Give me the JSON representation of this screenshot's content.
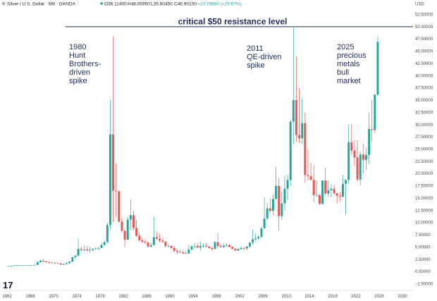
{
  "chart_data": {
    "type": "candlestick",
    "header": {
      "symbol": "Silver / U.S. Dollar · 6M · OANDA",
      "open": "O36.11400",
      "high": "H48.05950",
      "low": "L35.80450",
      "close": "C46.90100",
      "change": "+10.78660 (+29.87%)"
    },
    "currency_label": "USD",
    "ylim": [
      -2.5,
      52.5
    ],
    "xlim": [
      1962,
      2030
    ],
    "y_ticks": [
      "52.50000",
      "50.00000",
      "47.50000",
      "45.00000",
      "42.50000",
      "40.00000",
      "37.50000",
      "35.00000",
      "32.50000",
      "30.00000",
      "27.50000",
      "25.00000",
      "22.50000",
      "20.00000",
      "17.50000",
      "15.00000",
      "12.50000",
      "10.00000",
      "7.50000",
      "5.00000",
      "2.50000",
      "0.00000",
      "−2.50000"
    ],
    "x_ticks": [
      "1962",
      "1966",
      "1970",
      "1974",
      "1978",
      "1982",
      "1986",
      "1990",
      "1994",
      "1998",
      "2002",
      "2006",
      "2010",
      "2014",
      "2018",
      "2022",
      "2026",
      "2030"
    ],
    "resistance": {
      "value": 50,
      "start": 1972,
      "label": "critical $50 resistance level"
    },
    "annotations": [
      {
        "lines": [
          "1980",
          "Hunt",
          "Brothers-",
          "driven",
          "spike"
        ]
      },
      {
        "lines": [
          "2011",
          "QE-driven",
          "spike"
        ]
      },
      {
        "lines": [
          "2025",
          "precious",
          "metals",
          "bull",
          "market"
        ]
      }
    ],
    "colors": {
      "up": "#26a69a",
      "down": "#ef5350",
      "line": "#1f2d5c",
      "annotation": "#1f2d5c"
    },
    "candles": [
      {
        "t": 1962.0,
        "o": 1.05,
        "h": 1.12,
        "l": 1.0,
        "c": 1.1
      },
      {
        "t": 1962.5,
        "o": 1.1,
        "h": 1.18,
        "l": 1.05,
        "c": 1.15
      },
      {
        "t": 1963.0,
        "o": 1.15,
        "h": 1.3,
        "l": 1.12,
        "c": 1.28
      },
      {
        "t": 1963.5,
        "o": 1.28,
        "h": 1.32,
        "l": 1.25,
        "c": 1.29
      },
      {
        "t": 1964.0,
        "o": 1.29,
        "h": 1.3,
        "l": 1.28,
        "c": 1.29
      },
      {
        "t": 1964.5,
        "o": 1.29,
        "h": 1.3,
        "l": 1.28,
        "c": 1.29
      },
      {
        "t": 1965.0,
        "o": 1.29,
        "h": 1.3,
        "l": 1.28,
        "c": 1.29
      },
      {
        "t": 1965.5,
        "o": 1.29,
        "h": 1.3,
        "l": 1.28,
        "c": 1.29
      },
      {
        "t": 1966.0,
        "o": 1.29,
        "h": 1.3,
        "l": 1.28,
        "c": 1.29
      },
      {
        "t": 1966.5,
        "o": 1.29,
        "h": 1.45,
        "l": 1.28,
        "c": 1.35
      },
      {
        "t": 1967.0,
        "o": 1.35,
        "h": 2.1,
        "l": 1.3,
        "c": 1.9
      },
      {
        "t": 1967.5,
        "o": 1.9,
        "h": 2.4,
        "l": 1.8,
        "c": 2.2
      },
      {
        "t": 1968.0,
        "o": 2.2,
        "h": 2.6,
        "l": 1.9,
        "c": 2.05
      },
      {
        "t": 1968.5,
        "o": 2.05,
        "h": 2.2,
        "l": 1.8,
        "c": 1.9
      },
      {
        "t": 1969.0,
        "o": 1.9,
        "h": 2.05,
        "l": 1.6,
        "c": 1.8
      },
      {
        "t": 1969.5,
        "o": 1.8,
        "h": 1.95,
        "l": 1.7,
        "c": 1.8
      },
      {
        "t": 1970.0,
        "o": 1.8,
        "h": 1.9,
        "l": 1.55,
        "c": 1.7
      },
      {
        "t": 1970.5,
        "o": 1.7,
        "h": 1.8,
        "l": 1.6,
        "c": 1.65
      },
      {
        "t": 1971.0,
        "o": 1.65,
        "h": 1.75,
        "l": 1.3,
        "c": 1.4
      },
      {
        "t": 1971.5,
        "o": 1.4,
        "h": 1.6,
        "l": 1.3,
        "c": 1.55
      },
      {
        "t": 1972.0,
        "o": 1.55,
        "h": 1.9,
        "l": 1.4,
        "c": 1.7
      },
      {
        "t": 1972.5,
        "o": 1.7,
        "h": 2.1,
        "l": 1.6,
        "c": 2.0
      },
      {
        "t": 1973.0,
        "o": 2.0,
        "h": 3.0,
        "l": 1.95,
        "c": 2.9
      },
      {
        "t": 1973.5,
        "o": 2.9,
        "h": 3.4,
        "l": 2.5,
        "c": 3.2
      },
      {
        "t": 1974.0,
        "o": 3.2,
        "h": 6.7,
        "l": 3.1,
        "c": 4.6
      },
      {
        "t": 1974.5,
        "o": 4.6,
        "h": 5.1,
        "l": 4.0,
        "c": 4.4
      },
      {
        "t": 1975.0,
        "o": 4.4,
        "h": 5.3,
        "l": 4.1,
        "c": 4.5
      },
      {
        "t": 1975.5,
        "o": 4.5,
        "h": 5.2,
        "l": 4.2,
        "c": 4.3
      },
      {
        "t": 1976.0,
        "o": 4.3,
        "h": 5.1,
        "l": 3.9,
        "c": 4.4
      },
      {
        "t": 1976.5,
        "o": 4.4,
        "h": 4.8,
        "l": 4.2,
        "c": 4.6
      },
      {
        "t": 1977.0,
        "o": 4.6,
        "h": 4.9,
        "l": 4.4,
        "c": 4.7
      },
      {
        "t": 1977.5,
        "o": 4.7,
        "h": 5.0,
        "l": 4.3,
        "c": 4.8
      },
      {
        "t": 1978.0,
        "o": 4.8,
        "h": 5.9,
        "l": 4.8,
        "c": 5.4
      },
      {
        "t": 1978.5,
        "o": 5.4,
        "h": 6.3,
        "l": 5.2,
        "c": 6.0
      },
      {
        "t": 1979.0,
        "o": 6.0,
        "h": 10.0,
        "l": 5.8,
        "c": 9.5
      },
      {
        "t": 1979.5,
        "o": 9.5,
        "h": 35.0,
        "l": 8.5,
        "c": 28.0
      },
      {
        "t": 1980.0,
        "o": 28.0,
        "h": 48.0,
        "l": 10.0,
        "c": 16.5
      },
      {
        "t": 1980.5,
        "o": 16.5,
        "h": 22.0,
        "l": 11.0,
        "c": 16.4
      },
      {
        "t": 1981.0,
        "o": 16.4,
        "h": 16.5,
        "l": 10.0,
        "c": 10.2
      },
      {
        "t": 1981.5,
        "o": 10.2,
        "h": 11.0,
        "l": 7.9,
        "c": 8.3
      },
      {
        "t": 1982.0,
        "o": 8.3,
        "h": 8.5,
        "l": 5.0,
        "c": 6.5
      },
      {
        "t": 1982.5,
        "o": 6.5,
        "h": 11.2,
        "l": 6.4,
        "c": 10.6
      },
      {
        "t": 1983.0,
        "o": 10.6,
        "h": 14.7,
        "l": 8.5,
        "c": 11.5
      },
      {
        "t": 1983.5,
        "o": 11.5,
        "h": 12.5,
        "l": 8.4,
        "c": 8.9
      },
      {
        "t": 1984.0,
        "o": 8.9,
        "h": 10.5,
        "l": 7.0,
        "c": 7.3
      },
      {
        "t": 1984.5,
        "o": 7.3,
        "h": 8.0,
        "l": 6.2,
        "c": 6.4
      },
      {
        "t": 1985.0,
        "o": 6.4,
        "h": 7.0,
        "l": 5.8,
        "c": 6.1
      },
      {
        "t": 1985.5,
        "o": 6.1,
        "h": 6.6,
        "l": 5.6,
        "c": 5.9
      },
      {
        "t": 1986.0,
        "o": 5.9,
        "h": 6.2,
        "l": 4.9,
        "c": 5.1
      },
      {
        "t": 1986.5,
        "o": 5.1,
        "h": 6.0,
        "l": 4.9,
        "c": 5.4
      },
      {
        "t": 1987.0,
        "o": 5.4,
        "h": 11.2,
        "l": 5.4,
        "c": 7.0
      },
      {
        "t": 1987.5,
        "o": 7.0,
        "h": 8.0,
        "l": 6.5,
        "c": 6.7
      },
      {
        "t": 1988.0,
        "o": 6.7,
        "h": 7.8,
        "l": 6.0,
        "c": 6.3
      },
      {
        "t": 1988.5,
        "o": 6.3,
        "h": 6.8,
        "l": 5.8,
        "c": 6.1
      },
      {
        "t": 1989.0,
        "o": 6.1,
        "h": 6.2,
        "l": 5.0,
        "c": 5.2
      },
      {
        "t": 1989.5,
        "o": 5.2,
        "h": 5.6,
        "l": 5.0,
        "c": 5.2
      },
      {
        "t": 1990.0,
        "o": 5.2,
        "h": 5.4,
        "l": 4.6,
        "c": 4.8
      },
      {
        "t": 1990.5,
        "o": 4.8,
        "h": 5.2,
        "l": 3.9,
        "c": 4.2
      },
      {
        "t": 1991.0,
        "o": 4.2,
        "h": 4.6,
        "l": 3.5,
        "c": 4.0
      },
      {
        "t": 1991.5,
        "o": 4.0,
        "h": 4.4,
        "l": 3.8,
        "c": 3.9
      },
      {
        "t": 1992.0,
        "o": 3.9,
        "h": 4.3,
        "l": 3.6,
        "c": 3.7
      },
      {
        "t": 1992.5,
        "o": 3.7,
        "h": 4.1,
        "l": 3.6,
        "c": 3.7
      },
      {
        "t": 1993.0,
        "o": 3.7,
        "h": 5.4,
        "l": 3.5,
        "c": 4.5
      },
      {
        "t": 1993.5,
        "o": 4.5,
        "h": 5.4,
        "l": 4.3,
        "c": 5.1
      },
      {
        "t": 1994.0,
        "o": 5.1,
        "h": 5.8,
        "l": 4.6,
        "c": 5.2
      },
      {
        "t": 1994.5,
        "o": 5.2,
        "h": 5.7,
        "l": 4.8,
        "c": 4.9
      },
      {
        "t": 1995.0,
        "o": 4.9,
        "h": 6.1,
        "l": 4.4,
        "c": 5.2
      },
      {
        "t": 1995.5,
        "o": 5.2,
        "h": 5.8,
        "l": 4.9,
        "c": 5.2
      },
      {
        "t": 1996.0,
        "o": 5.2,
        "h": 5.8,
        "l": 5.0,
        "c": 5.1
      },
      {
        "t": 1996.5,
        "o": 5.1,
        "h": 5.2,
        "l": 4.7,
        "c": 4.8
      },
      {
        "t": 1997.0,
        "o": 4.8,
        "h": 5.0,
        "l": 4.2,
        "c": 4.6
      },
      {
        "t": 1997.5,
        "o": 4.6,
        "h": 6.3,
        "l": 4.5,
        "c": 6.0
      },
      {
        "t": 1998.0,
        "o": 6.0,
        "h": 7.8,
        "l": 4.8,
        "c": 5.2
      },
      {
        "t": 1998.5,
        "o": 5.2,
        "h": 5.6,
        "l": 4.9,
        "c": 5.0
      },
      {
        "t": 1999.0,
        "o": 5.0,
        "h": 5.8,
        "l": 4.8,
        "c": 5.3
      },
      {
        "t": 1999.5,
        "o": 5.3,
        "h": 5.8,
        "l": 5.0,
        "c": 5.4
      },
      {
        "t": 2000.0,
        "o": 5.4,
        "h": 5.6,
        "l": 4.9,
        "c": 5.0
      },
      {
        "t": 2000.5,
        "o": 5.0,
        "h": 5.2,
        "l": 4.6,
        "c": 4.6
      },
      {
        "t": 2001.0,
        "o": 4.6,
        "h": 4.8,
        "l": 4.2,
        "c": 4.3
      },
      {
        "t": 2001.5,
        "o": 4.3,
        "h": 4.7,
        "l": 4.1,
        "c": 4.6
      },
      {
        "t": 2002.0,
        "o": 4.6,
        "h": 5.1,
        "l": 4.4,
        "c": 4.8
      },
      {
        "t": 2002.5,
        "o": 4.8,
        "h": 5.0,
        "l": 4.3,
        "c": 4.7
      },
      {
        "t": 2003.0,
        "o": 4.7,
        "h": 5.2,
        "l": 4.4,
        "c": 5.1
      },
      {
        "t": 2003.5,
        "o": 5.1,
        "h": 6.0,
        "l": 4.9,
        "c": 5.9
      },
      {
        "t": 2004.0,
        "o": 5.9,
        "h": 8.5,
        "l": 5.5,
        "c": 6.6
      },
      {
        "t": 2004.5,
        "o": 6.6,
        "h": 7.8,
        "l": 6.3,
        "c": 6.8
      },
      {
        "t": 2005.0,
        "o": 6.8,
        "h": 7.4,
        "l": 6.4,
        "c": 7.1
      },
      {
        "t": 2005.5,
        "o": 7.1,
        "h": 9.2,
        "l": 6.7,
        "c": 8.8
      },
      {
        "t": 2006.0,
        "o": 8.8,
        "h": 15.2,
        "l": 8.8,
        "c": 10.8
      },
      {
        "t": 2006.5,
        "o": 10.8,
        "h": 14.0,
        "l": 10.5,
        "c": 12.9
      },
      {
        "t": 2007.0,
        "o": 12.9,
        "h": 14.9,
        "l": 12.0,
        "c": 12.4
      },
      {
        "t": 2007.5,
        "o": 12.4,
        "h": 15.8,
        "l": 11.5,
        "c": 14.8
      },
      {
        "t": 2008.0,
        "o": 14.8,
        "h": 21.4,
        "l": 14.8,
        "c": 17.5
      },
      {
        "t": 2008.5,
        "o": 17.5,
        "h": 19.0,
        "l": 8.4,
        "c": 11.3
      },
      {
        "t": 2009.0,
        "o": 11.3,
        "h": 16.3,
        "l": 10.5,
        "c": 13.9
      },
      {
        "t": 2009.5,
        "o": 13.9,
        "h": 19.5,
        "l": 12.5,
        "c": 16.9
      },
      {
        "t": 2010.0,
        "o": 16.9,
        "h": 19.8,
        "l": 14.6,
        "c": 18.7
      },
      {
        "t": 2010.5,
        "o": 18.7,
        "h": 31.0,
        "l": 17.5,
        "c": 30.6
      },
      {
        "t": 2011.0,
        "o": 30.6,
        "h": 49.8,
        "l": 26.0,
        "c": 35.0
      },
      {
        "t": 2011.5,
        "o": 35.0,
        "h": 44.0,
        "l": 26.5,
        "c": 27.9
      },
      {
        "t": 2012.0,
        "o": 27.9,
        "h": 37.5,
        "l": 26.2,
        "c": 27.2
      },
      {
        "t": 2012.5,
        "o": 27.2,
        "h": 35.4,
        "l": 26.0,
        "c": 30.3
      },
      {
        "t": 2013.0,
        "o": 30.3,
        "h": 32.5,
        "l": 18.2,
        "c": 19.7
      },
      {
        "t": 2013.5,
        "o": 19.7,
        "h": 25.0,
        "l": 18.6,
        "c": 19.5
      },
      {
        "t": 2014.0,
        "o": 19.5,
        "h": 22.2,
        "l": 18.6,
        "c": 18.7
      },
      {
        "t": 2014.5,
        "o": 18.7,
        "h": 21.6,
        "l": 14.2,
        "c": 15.6
      },
      {
        "t": 2015.0,
        "o": 15.6,
        "h": 18.5,
        "l": 15.3,
        "c": 15.6
      },
      {
        "t": 2015.5,
        "o": 15.6,
        "h": 15.9,
        "l": 13.6,
        "c": 13.8
      },
      {
        "t": 2016.0,
        "o": 13.8,
        "h": 18.6,
        "l": 13.7,
        "c": 18.6
      },
      {
        "t": 2016.5,
        "o": 18.6,
        "h": 21.2,
        "l": 15.6,
        "c": 15.9
      },
      {
        "t": 2017.0,
        "o": 15.9,
        "h": 18.6,
        "l": 15.2,
        "c": 16.6
      },
      {
        "t": 2017.5,
        "o": 16.6,
        "h": 17.9,
        "l": 15.2,
        "c": 16.9
      },
      {
        "t": 2018.0,
        "o": 16.9,
        "h": 17.7,
        "l": 15.7,
        "c": 16.0
      },
      {
        "t": 2018.5,
        "o": 16.0,
        "h": 16.0,
        "l": 13.9,
        "c": 15.5
      },
      {
        "t": 2019.0,
        "o": 15.5,
        "h": 16.2,
        "l": 14.3,
        "c": 15.3
      },
      {
        "t": 2019.5,
        "o": 15.3,
        "h": 19.6,
        "l": 15.1,
        "c": 17.9
      },
      {
        "t": 2020.0,
        "o": 17.9,
        "h": 18.9,
        "l": 11.6,
        "c": 18.7
      },
      {
        "t": 2020.5,
        "o": 18.7,
        "h": 29.9,
        "l": 17.9,
        "c": 26.4
      },
      {
        "t": 2021.0,
        "o": 26.4,
        "h": 30.1,
        "l": 23.8,
        "c": 24.7
      },
      {
        "t": 2021.5,
        "o": 24.7,
        "h": 26.8,
        "l": 21.4,
        "c": 23.3
      },
      {
        "t": 2022.0,
        "o": 23.3,
        "h": 26.9,
        "l": 18.3,
        "c": 18.8
      },
      {
        "t": 2022.5,
        "o": 18.8,
        "h": 24.5,
        "l": 17.6,
        "c": 23.9
      },
      {
        "t": 2023.0,
        "o": 23.9,
        "h": 26.1,
        "l": 20.0,
        "c": 22.8
      },
      {
        "t": 2023.5,
        "o": 22.8,
        "h": 25.3,
        "l": 20.7,
        "c": 23.8
      },
      {
        "t": 2024.0,
        "o": 23.8,
        "h": 32.5,
        "l": 21.9,
        "c": 29.1
      },
      {
        "t": 2024.5,
        "o": 29.1,
        "h": 35.0,
        "l": 26.5,
        "c": 28.9
      },
      {
        "t": 2025.0,
        "o": 28.9,
        "h": 36.3,
        "l": 28.3,
        "c": 36.1
      },
      {
        "t": 2025.5,
        "o": 36.1,
        "h": 48.06,
        "l": 35.8,
        "c": 46.9
      }
    ]
  }
}
